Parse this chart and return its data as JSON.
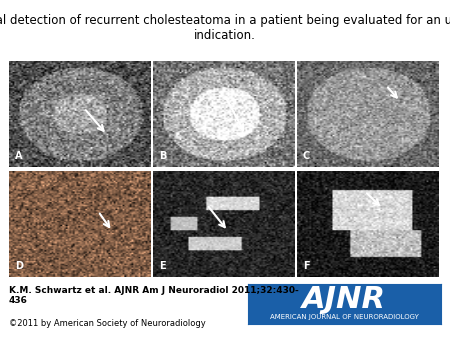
{
  "title": "Incidental detection of recurrent cholesteatoma in a patient being evaluated for an unrelated\nindication.",
  "title_fontsize": 8.5,
  "citation": "K.M. Schwartz et al. AJNR Am J Neuroradiol 2011;32:430-\n436",
  "copyright": "©2011 by American Society of Neuroradiology",
  "citation_fontsize": 6.5,
  "copyright_fontsize": 6.0,
  "bg_color": "#ffffff",
  "panel_labels": [
    "A",
    "B",
    "C",
    "D",
    "E",
    "F"
  ],
  "panel_label_color": "#ffffff",
  "ainr_bg_color": "#1a5fa8",
  "ainr_text_color": "#ffffff",
  "ainr_text": "AJNR",
  "ainr_subtext": "AMERICAN JOURNAL OF NEURORADIOLOGY",
  "ainr_text_fontsize": 22,
  "ainr_subtext_fontsize": 5
}
